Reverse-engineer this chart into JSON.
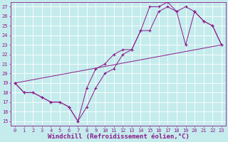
{
  "bg_color": "#c5eced",
  "line_color": "#8b1a8b",
  "grid_color": "#b8dfe0",
  "xlabel": "Windchill (Refroidissement éolien,°C)",
  "xlim": [
    -0.5,
    23.5
  ],
  "ylim": [
    14.5,
    27.5
  ],
  "xticks": [
    0,
    1,
    2,
    3,
    4,
    5,
    6,
    7,
    8,
    9,
    10,
    11,
    12,
    13,
    14,
    15,
    16,
    17,
    18,
    19,
    20,
    21,
    22,
    23
  ],
  "yticks": [
    15,
    16,
    17,
    18,
    19,
    20,
    21,
    22,
    23,
    24,
    25,
    26,
    27
  ],
  "series1_x": [
    0,
    1,
    2,
    3,
    4,
    5,
    6,
    7,
    8,
    9,
    10,
    11,
    12,
    13,
    14,
    15,
    16,
    17,
    18,
    19,
    20,
    21,
    22,
    23
  ],
  "series1_y": [
    19,
    18,
    18,
    17.5,
    17,
    17,
    16.5,
    15,
    16.5,
    18.5,
    20,
    20.5,
    22,
    22.5,
    24.5,
    27,
    27,
    27.5,
    26.5,
    23,
    26.5,
    25.5,
    25,
    23
  ],
  "series2_x": [
    0,
    1,
    2,
    3,
    4,
    5,
    6,
    7,
    8,
    9,
    10,
    11,
    12,
    13,
    14,
    15,
    16,
    17,
    18,
    19,
    20,
    21,
    22,
    23
  ],
  "series2_y": [
    19,
    18,
    18,
    17.5,
    17,
    17,
    16.5,
    15,
    18.5,
    20.5,
    21,
    22,
    22.5,
    22.5,
    24.5,
    24.5,
    26.5,
    27,
    26.5,
    27,
    26.5,
    25.5,
    25,
    23
  ],
  "series3_x": [
    0,
    23
  ],
  "series3_y": [
    19,
    23
  ],
  "font_size": 6,
  "tick_font_size": 5,
  "label_fontsize": 6.5
}
